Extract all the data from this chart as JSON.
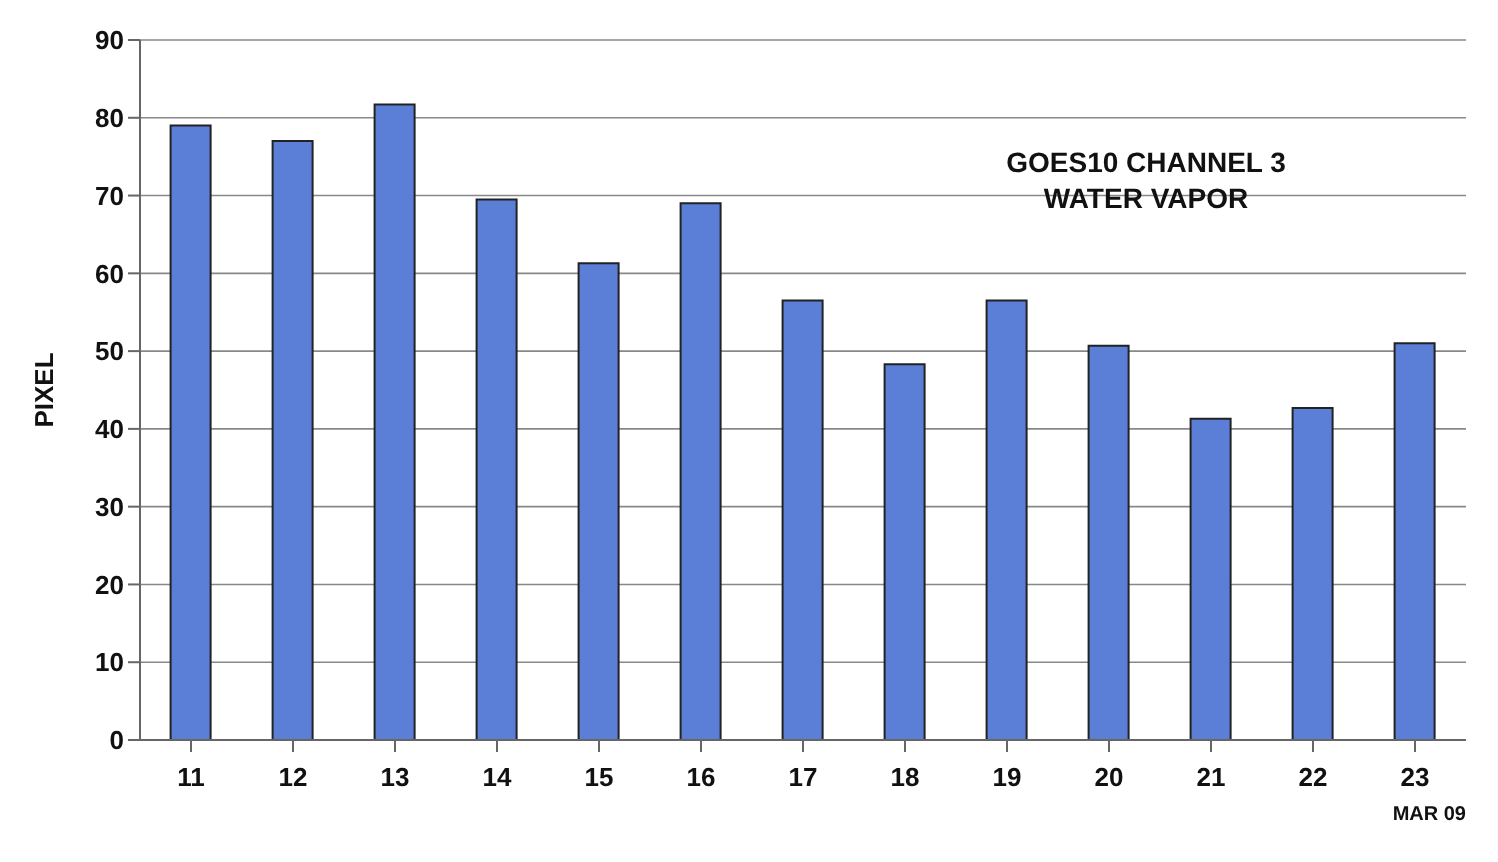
{
  "chart_data": {
    "type": "bar",
    "title": "GOES10 CHANNEL 3\nWATER VAPOR",
    "xlabel": "MAR 09",
    "ylabel": "PIXEL",
    "categories": [
      "11",
      "12",
      "13",
      "14",
      "15",
      "16",
      "17",
      "18",
      "19",
      "20",
      "21",
      "22",
      "23"
    ],
    "values": [
      79,
      77,
      81.7,
      69.5,
      61.3,
      69,
      56.5,
      48.3,
      56.5,
      50.7,
      41.3,
      42.7,
      51
    ],
    "color": "#5b7fd6",
    "ylim": [
      0,
      90
    ],
    "yticks": [
      0,
      10,
      20,
      30,
      40,
      50,
      60,
      70,
      80,
      90
    ],
    "grid": "y"
  }
}
